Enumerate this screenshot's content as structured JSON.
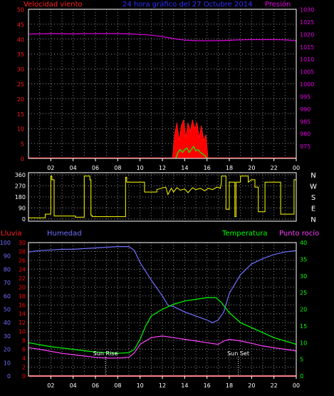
{
  "colors": {
    "background": "#000000",
    "frame": "#ffffff",
    "grid": "#8a8a8a",
    "wind": "#ff1a1a",
    "gust_fill": "#ff0000",
    "wind_green": "#00ff00",
    "pressure": "#e000e0",
    "wind_dir": "#ffff00",
    "rain": "#ff0000",
    "humidity": "#7070ff",
    "temperature": "#00ff00",
    "dewpoint": "#ff40ff",
    "sun_marker": "#ffffff",
    "time_label": "#ffffff"
  },
  "chart_data": [
    {
      "type": "area",
      "title": "24 hora gráfico del 27 Octubre 2014",
      "x_tick_labels": [
        "02",
        "04",
        "06",
        "08",
        "10",
        "12",
        "14",
        "16",
        "18",
        "20",
        "22",
        "00"
      ],
      "left_axis": {
        "label": "Velocidad viento",
        "range": [
          0,
          50
        ],
        "ticks": [
          0,
          5,
          10,
          15,
          20,
          25,
          30,
          35,
          40,
          45,
          50
        ]
      },
      "right_axis": {
        "label": "Presión",
        "range": [
          970,
          1030
        ],
        "ticks": [
          975,
          980,
          985,
          990,
          995,
          1000,
          1005,
          1010,
          1015,
          1020,
          1025,
          1030
        ]
      },
      "pressure_series": {
        "name": "Presión",
        "x": [
          0,
          2,
          4,
          6,
          8,
          9,
          10,
          11,
          12,
          13,
          14,
          15,
          16,
          17,
          18,
          19,
          20,
          21,
          22,
          23,
          24
        ],
        "y": [
          1020,
          1020.2,
          1020.1,
          1020.2,
          1020.2,
          1020.1,
          1019.9,
          1019.6,
          1019,
          1018.2,
          1017.6,
          1017.4,
          1017.3,
          1017.4,
          1017.5,
          1017.7,
          1017.8,
          1017.8,
          1017.8,
          1017.7,
          1017.3
        ]
      },
      "wind_gust_series": {
        "name": "Velocidad viento",
        "x": [
          12.9,
          13.1,
          13.3,
          13.5,
          13.7,
          13.9,
          14.1,
          14.3,
          14.5,
          14.7,
          14.9,
          15.1,
          15.3,
          15.5,
          15.7,
          15.9,
          16.1
        ],
        "y": [
          0,
          8,
          12,
          6,
          11,
          13,
          7,
          12,
          9,
          13,
          10,
          12,
          7,
          11,
          6,
          8,
          0
        ]
      },
      "wind_avg_series": {
        "x": [
          13.2,
          13.4,
          13.6,
          13.8,
          14.0,
          14.2,
          14.4,
          14.6,
          14.8,
          15.0,
          15.2,
          15.4,
          15.6,
          15.8,
          16.0
        ],
        "y": [
          0,
          2,
          3,
          2,
          3,
          3.5,
          2,
          3,
          4,
          2.5,
          3,
          2,
          1.5,
          1,
          0
        ]
      }
    },
    {
      "type": "line",
      "left_axis": {
        "range": [
          0,
          360
        ],
        "ticks": [
          0,
          90,
          180,
          270,
          360
        ]
      },
      "right_axis_labels": [
        "N",
        "W",
        "S",
        "E",
        "N"
      ],
      "x_tick_labels": [],
      "wind_direction": {
        "x": [
          0,
          1.5,
          1.5,
          2.0,
          2.0,
          2.1,
          2.1,
          2.3,
          2.3,
          4.2,
          4.2,
          5.0,
          5.0,
          5.5,
          5.5,
          5.6,
          5.6,
          5.7,
          5.7,
          6.3,
          6.3,
          8.7,
          8.7,
          8.8,
          8.8,
          10.4,
          10.4,
          11.5,
          11.5,
          12.3,
          12.5,
          12.8,
          13.0,
          13.3,
          13.6,
          14.0,
          14.3,
          14.7,
          15.0,
          15.4,
          15.8,
          16.1,
          16.5,
          16.9,
          17.2,
          17.3,
          17.3,
          17.7,
          17.7,
          18.0,
          18.0,
          18.5,
          18.5,
          18.6,
          18.6,
          19.0,
          19.0,
          19.7,
          19.7,
          20.0,
          20.3,
          20.3,
          20.6,
          20.6,
          21.2,
          21.2,
          22.6,
          22.6,
          23.8,
          23.8,
          24.0
        ],
        "y": [
          10,
          10,
          40,
          40,
          350,
          350,
          320,
          320,
          25,
          25,
          15,
          15,
          350,
          350,
          320,
          320,
          30,
          30,
          20,
          20,
          20,
          20,
          340,
          340,
          300,
          300,
          220,
          220,
          240,
          260,
          200,
          250,
          220,
          255,
          235,
          245,
          215,
          255,
          240,
          250,
          230,
          250,
          240,
          260,
          250,
          300,
          350,
          350,
          80,
          80,
          300,
          300,
          20,
          20,
          300,
          300,
          350,
          350,
          300,
          320,
          320,
          260,
          260,
          60,
          60,
          300,
          300,
          40,
          40,
          320,
          320
        ]
      }
    },
    {
      "type": "line",
      "x_tick_labels": [
        "02",
        "04",
        "06",
        "08",
        "10",
        "12",
        "14",
        "16",
        "18",
        "20",
        "22",
        "00"
      ],
      "left_axis_rain": {
        "label": "Lluvia",
        "range": [
          0,
          30
        ],
        "ticks": [
          0,
          2,
          4,
          6,
          8,
          10,
          12,
          14,
          16,
          18,
          20,
          22,
          24,
          26,
          28,
          30
        ]
      },
      "left_axis_humidity": {
        "label": "Humedad",
        "range": [
          0,
          100
        ],
        "ticks": [
          0,
          10,
          20,
          30,
          40,
          50,
          60,
          70,
          80,
          90,
          100
        ]
      },
      "right_axis_temp": {
        "label": "Temperatura",
        "range": [
          0,
          40
        ],
        "ticks": [
          0,
          5,
          10,
          15,
          20,
          25,
          30,
          35,
          40
        ]
      },
      "right_axis_dew_label": "Punto rocío",
      "annotations": [
        {
          "label": "Sun Rise",
          "x": 6.9
        },
        {
          "label": "Sun Set",
          "x": 18.8
        }
      ],
      "series": [
        {
          "name": "Humedad",
          "x": [
            0,
            1,
            2,
            3,
            4,
            5,
            6,
            7,
            8,
            9,
            9.5,
            10,
            11,
            12,
            12.5,
            13,
            14,
            15,
            16,
            16.5,
            17,
            17.5,
            18,
            19,
            20,
            21,
            22,
            23,
            24
          ],
          "y": [
            93,
            94,
            94.5,
            95,
            95,
            95.5,
            96,
            96.5,
            97,
            97,
            94,
            85,
            72,
            60,
            53,
            52,
            48,
            45,
            42,
            40,
            42,
            48,
            62,
            76,
            84,
            88,
            91,
            93,
            94
          ]
        },
        {
          "name": "Temperatura",
          "x": [
            0,
            1,
            2,
            3,
            4,
            5,
            6,
            7,
            8,
            9,
            9.5,
            10,
            10.5,
            11,
            12,
            13,
            14,
            15,
            16,
            16.8,
            17.3,
            18,
            19,
            20,
            21,
            22,
            23,
            24
          ],
          "y": [
            10,
            9.4,
            8.8,
            8.4,
            8,
            7.6,
            7.2,
            7,
            6.8,
            7,
            8,
            11,
            15,
            18,
            20,
            21.5,
            22.5,
            23,
            23.5,
            23.5,
            22,
            19,
            16,
            14.5,
            13,
            11.5,
            10.5,
            9.5
          ]
        },
        {
          "name": "Punto rocío",
          "x": [
            0,
            1,
            2,
            3,
            4,
            5,
            6,
            7,
            8,
            9,
            9.5,
            10,
            11,
            12,
            13,
            14,
            15,
            16,
            17,
            17.5,
            18,
            19,
            20,
            21,
            22,
            23,
            24
          ],
          "y": [
            8.5,
            8,
            7.4,
            6.8,
            6.4,
            6,
            5.6,
            5.4,
            5.4,
            5.6,
            7,
            9.5,
            11.5,
            12,
            11.5,
            11,
            10.5,
            10,
            9.5,
            10.5,
            11,
            10.5,
            9.8,
            9,
            8.5,
            8,
            7.5
          ]
        },
        {
          "name": "Lluvia",
          "x": [
            0,
            24
          ],
          "y": [
            0,
            0
          ]
        }
      ]
    }
  ]
}
